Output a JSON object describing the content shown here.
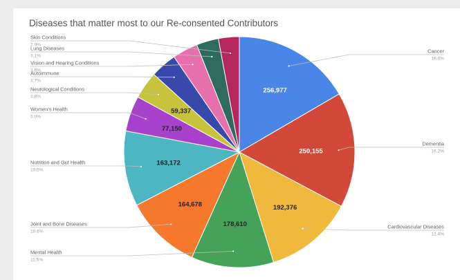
{
  "chart_data": {
    "type": "pie",
    "title": "Diseases that matter most to our Re-consented Contributors",
    "slices": [
      {
        "name": "Cancer",
        "value": 256977,
        "value_label": "256,977",
        "percent": "16.6%",
        "color": "#4a86e8"
      },
      {
        "name": "Dementia",
        "value": 250155,
        "value_label": "250,155",
        "percent": "16.2%",
        "color": "#d2493a"
      },
      {
        "name": "Cardiovascular Diseases",
        "value": 192376,
        "value_label": "192,376",
        "percent": "12.4%",
        "color": "#f0b93b"
      },
      {
        "name": "Mental Health",
        "value": 178610,
        "value_label": "178,610",
        "percent": "11.5%",
        "color": "#44a259"
      },
      {
        "name": "Joint and Bone Diseases",
        "value": 164678,
        "value_label": "164,678",
        "percent": "10.6%",
        "color": "#f5782d"
      },
      {
        "name": "Nutrition and Gut Health",
        "value": 163172,
        "value_label": "163,172",
        "percent": "10.5%",
        "color": "#4db6c3"
      },
      {
        "name": "Women's Health",
        "value": 77150,
        "value_label": "77,150",
        "percent": "5.0%",
        "color": "#a841cc"
      },
      {
        "name": "Neurological Conditions",
        "value": 59337,
        "value_label": "59,337",
        "percent": "3.8%",
        "color": "#c7c33b"
      },
      {
        "name": "Autoimmune",
        "value": 57000,
        "value_label": "",
        "percent": "3.7%",
        "color": "#3949ab"
      },
      {
        "name": "Vision and Hearing Conditions",
        "value": 55000,
        "value_label": "",
        "percent": "3.6%",
        "color": "#e86fae"
      },
      {
        "name": "Lung Diseases",
        "value": 48000,
        "value_label": "",
        "percent": "3.1%",
        "color": "#2e6b5e"
      },
      {
        "name": "Skin Conditions",
        "value": 45000,
        "value_label": "",
        "percent": "2.9%",
        "color": "#b3275e"
      }
    ]
  }
}
